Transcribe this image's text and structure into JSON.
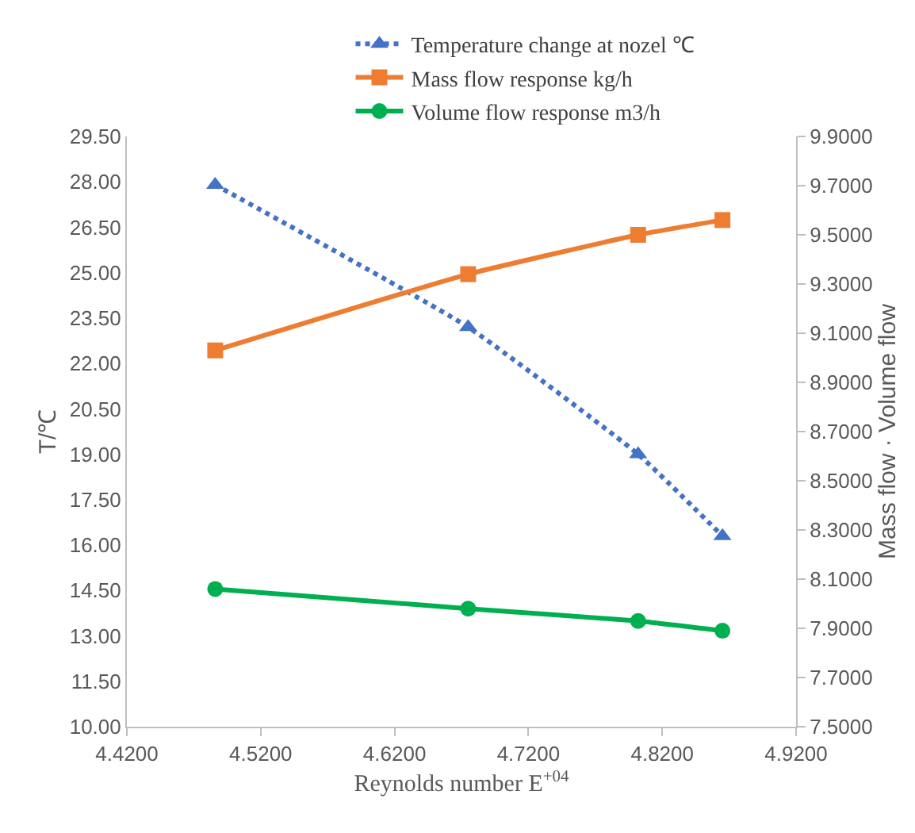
{
  "chart_data": {
    "type": "line",
    "xlabel": "Reynolds number E$^{+04}$",
    "ylabel": "T/℃",
    "y2label": "Mass flow · Volume flow",
    "x": [
      4.486,
      4.675,
      4.802,
      4.865
    ],
    "series": [
      {
        "name": "Temperature change at nozel ℃",
        "color": "#4472c4",
        "values": [
          27.9,
          23.2,
          19.0,
          16.3
        ],
        "marker": "triangle",
        "line_style": "dotted"
      },
      {
        "name": "Mass flow response kg/h",
        "color": "#ed7d31",
        "values": [
          9.03,
          9.34,
          9.5,
          9.56
        ],
        "marker": "square",
        "line_style": "solid",
        "axis": "y2"
      },
      {
        "name": "Volume flow response m3/h",
        "color": "#00b050",
        "values": [
          8.06,
          7.98,
          7.93,
          7.89
        ],
        "marker": "circle",
        "line_style": "solid",
        "axis": "y2"
      }
    ],
    "xlim": [
      4.42,
      4.92
    ],
    "xticks": [
      {
        "value": 4.42,
        "label": "4.4200"
      },
      {
        "value": 4.52,
        "label": "4.5200"
      },
      {
        "value": 4.62,
        "label": "4.6200"
      },
      {
        "value": 4.72,
        "label": "4.7200"
      },
      {
        "value": 4.82,
        "label": "4.8200"
      },
      {
        "value": 4.92,
        "label": "4.9200"
      }
    ],
    "ylim": [
      10,
      29.5
    ],
    "yticks": [
      {
        "value": 10,
        "label": "10.00"
      },
      {
        "value": 11.5,
        "label": "11.50"
      },
      {
        "value": 13,
        "label": "13.00"
      },
      {
        "value": 14.5,
        "label": "14.50"
      },
      {
        "value": 16,
        "label": "16.00"
      },
      {
        "value": 17.5,
        "label": "17.50"
      },
      {
        "value": 19,
        "label": "19.00"
      },
      {
        "value": 20.5,
        "label": "20.50"
      },
      {
        "value": 22,
        "label": "22.00"
      },
      {
        "value": 23.5,
        "label": "23.50"
      },
      {
        "value": 25,
        "label": "25.00"
      },
      {
        "value": 26.5,
        "label": "26.50"
      },
      {
        "value": 28,
        "label": "28.00"
      },
      {
        "value": 29.5,
        "label": "29.50"
      }
    ],
    "y2lim": [
      7.5,
      9.9
    ],
    "y2ticks": [
      {
        "value": 7.5,
        "label": "7.5000"
      },
      {
        "value": 7.7,
        "label": "7.7000"
      },
      {
        "value": 7.9,
        "label": "7.9000"
      },
      {
        "value": 8.1,
        "label": "8.1000"
      },
      {
        "value": 8.3,
        "label": "8.3000"
      },
      {
        "value": 8.5,
        "label": "8.5000"
      },
      {
        "value": 8.7,
        "label": "8.7000"
      },
      {
        "value": 8.9,
        "label": "8.9000"
      },
      {
        "value": 9.1,
        "label": "9.1000"
      },
      {
        "value": 9.3,
        "label": "9.3000"
      },
      {
        "value": 9.5,
        "label": "9.5000"
      },
      {
        "value": 9.7,
        "label": "9.7000"
      },
      {
        "value": 9.9,
        "label": "9.9000"
      }
    ],
    "legend": "top"
  }
}
